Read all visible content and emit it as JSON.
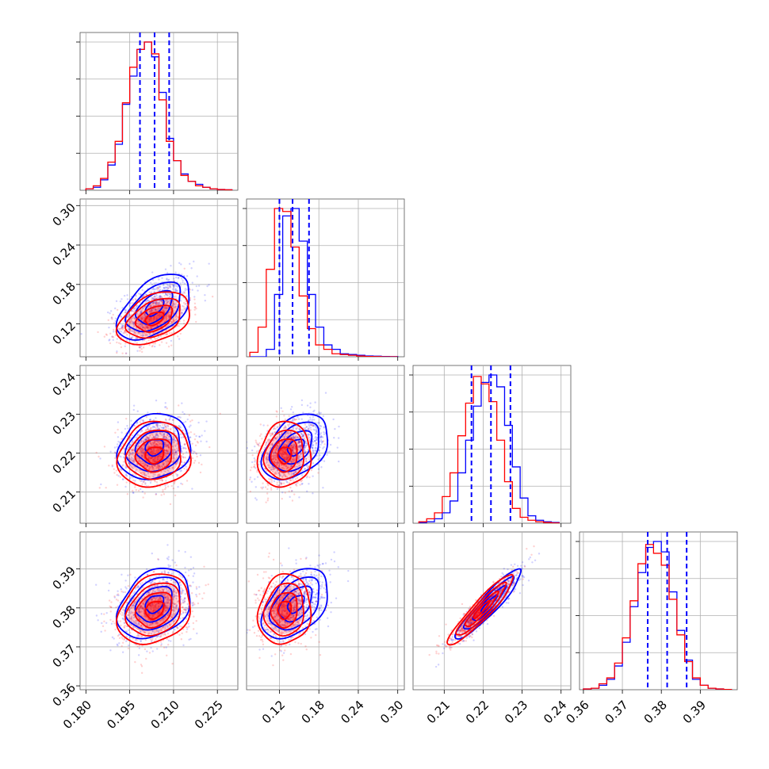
{
  "colors": {
    "blue": "#0000ff",
    "red": "#ff0000",
    "quantile": "#0000ff"
  },
  "chart_data": {
    "type": "corner",
    "grid": true,
    "n_params": 4,
    "series_colors": [
      "#0000ff",
      "#ff0000"
    ],
    "ranges": [
      [
        0.178,
        0.232
      ],
      [
        0.07,
        0.31
      ],
      [
        0.202,
        0.2425
      ],
      [
        0.359,
        0.3995
      ]
    ],
    "x_ticks": [
      [
        "0.180",
        "0.195",
        "0.210",
        "0.225"
      ],
      [
        "0.12",
        "0.18",
        "0.24",
        "0.30"
      ],
      [
        "0.21",
        "0.22",
        "0.23",
        "0.24"
      ],
      [
        "0.36",
        "0.37",
        "0.38",
        "0.39"
      ]
    ],
    "y_ticks": [
      [],
      [
        "0.12",
        "0.18",
        "0.24",
        "0.30"
      ],
      [
        "0.21",
        "0.22",
        "0.23",
        "0.24"
      ],
      [
        "0.36",
        "0.37",
        "0.38",
        "0.39"
      ]
    ],
    "stats": {
      "blue": {
        "mean": [
          0.2035,
          0.145,
          0.2215,
          0.381
        ],
        "std": [
          0.0062,
          0.025,
          0.0042,
          0.0045
        ],
        "corr": {
          "0-1": 0.5,
          "0-2": 0.15,
          "0-3": 0.3,
          "1-2": 0.4,
          "1-3": 0.45,
          "2-3": 0.93
        }
      },
      "red": {
        "mean": [
          0.2035,
          0.128,
          0.2195,
          0.3795
        ],
        "std": [
          0.0062,
          0.02,
          0.0042,
          0.0045
        ],
        "corr": {
          "0-1": 0.4,
          "0-2": 0.1,
          "0-3": 0.25,
          "1-2": 0.1,
          "1-3": 0.1,
          "2-3": 0.93
        }
      }
    },
    "quantiles": [
      [
        0.1985,
        0.2035,
        0.2085
      ],
      [
        0.12,
        0.14,
        0.165
      ],
      [
        0.217,
        0.222,
        0.227
      ],
      [
        0.3765,
        0.3815,
        0.3865
      ]
    ],
    "histograms": [
      {
        "edges": [
          0.18,
          0.1825,
          0.185,
          0.1875,
          0.19,
          0.1925,
          0.195,
          0.1975,
          0.2,
          0.2025,
          0.205,
          0.2075,
          0.21,
          0.2125,
          0.215,
          0.2175,
          0.22,
          0.2225,
          0.225,
          0.2275,
          0.23
        ],
        "blue": [
          0.01,
          0.02,
          0.07,
          0.17,
          0.31,
          0.58,
          0.77,
          0.95,
          1.0,
          0.9,
          0.66,
          0.35,
          0.2,
          0.11,
          0.06,
          0.04,
          0.02,
          0.01,
          0.005,
          0.003
        ],
        "red": [
          0.01,
          0.03,
          0.08,
          0.19,
          0.33,
          0.59,
          0.83,
          0.95,
          1.0,
          0.92,
          0.61,
          0.33,
          0.2,
          0.1,
          0.06,
          0.03,
          0.02,
          0.01,
          0.005,
          0.003
        ]
      },
      {
        "edges": [
          0.075,
          0.0875,
          0.1,
          0.1125,
          0.125,
          0.1375,
          0.15,
          0.1625,
          0.175,
          0.1875,
          0.2,
          0.2125,
          0.225,
          0.2375,
          0.25,
          0.2625,
          0.275,
          0.2875,
          0.3
        ],
        "blue": [
          0.0,
          0.0,
          0.05,
          0.42,
          0.95,
          1.0,
          0.78,
          0.42,
          0.2,
          0.08,
          0.05,
          0.02,
          0.015,
          0.01,
          0.005,
          0.004,
          0.002,
          0.001
        ],
        "red": [
          0.03,
          0.2,
          0.59,
          1.0,
          0.98,
          0.74,
          0.41,
          0.19,
          0.08,
          0.05,
          0.02,
          0.015,
          0.01,
          0.005,
          0.002,
          0.001,
          0.0,
          0.0
        ]
      },
      {
        "edges": [
          0.2035,
          0.2055,
          0.2075,
          0.2095,
          0.2115,
          0.2135,
          0.2155,
          0.2175,
          0.2195,
          0.2215,
          0.2235,
          0.2255,
          0.2275,
          0.2295,
          0.2315,
          0.2335,
          0.2355,
          0.2375,
          0.2395
        ],
        "blue": [
          0.005,
          0.01,
          0.03,
          0.07,
          0.15,
          0.34,
          0.56,
          0.79,
          0.95,
          1.0,
          0.92,
          0.66,
          0.38,
          0.17,
          0.05,
          0.02,
          0.01,
          0.005
        ],
        "red": [
          0.01,
          0.03,
          0.07,
          0.18,
          0.34,
          0.59,
          0.81,
          0.99,
          0.94,
          0.82,
          0.56,
          0.28,
          0.1,
          0.04,
          0.02,
          0.01,
          0.005,
          0.002
        ]
      },
      {
        "edges": [
          0.36,
          0.362,
          0.364,
          0.366,
          0.368,
          0.37,
          0.372,
          0.374,
          0.376,
          0.378,
          0.38,
          0.382,
          0.384,
          0.386,
          0.388,
          0.39,
          0.392,
          0.394,
          0.396,
          0.398
        ],
        "blue": [
          0.005,
          0.01,
          0.03,
          0.07,
          0.16,
          0.32,
          0.56,
          0.79,
          0.96,
          1.0,
          0.93,
          0.66,
          0.4,
          0.2,
          0.07,
          0.03,
          0.01,
          0.005,
          0.002
        ],
        "red": [
          0.005,
          0.01,
          0.04,
          0.08,
          0.18,
          0.35,
          0.6,
          0.85,
          0.98,
          0.92,
          0.84,
          0.61,
          0.37,
          0.19,
          0.08,
          0.03,
          0.01,
          0.005,
          0.002
        ]
      }
    ],
    "contour_levels_sigma": [
      0.5,
      1.0,
      1.5,
      2.0
    ]
  }
}
